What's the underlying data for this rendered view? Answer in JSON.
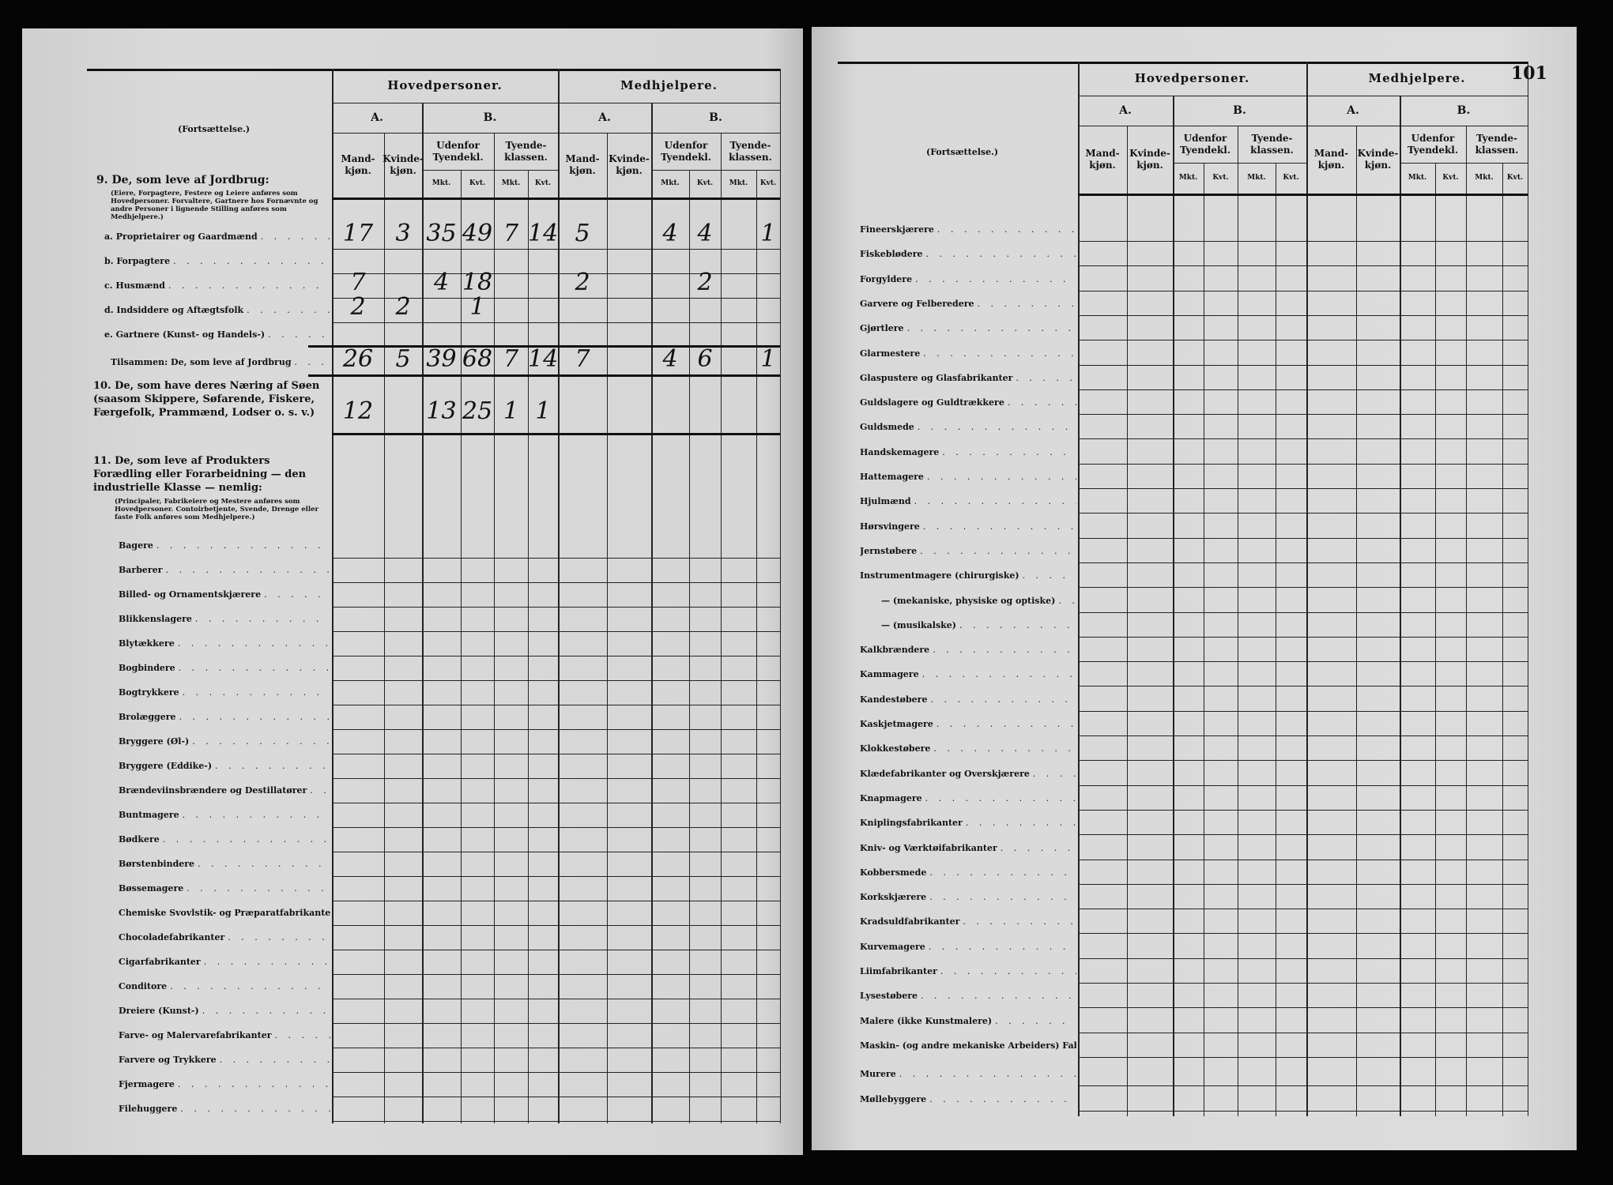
{
  "headers": {
    "continuation": "(Fortsættelse.)",
    "group_main": "Hovedpersoner.",
    "group_helpers": "Medhjelpere.",
    "col_a": "A.",
    "col_b": "B.",
    "male": "Mand-kjøn.",
    "female": "Kvinde-kjøn.",
    "outside": "Udenfor Tyendekl.",
    "servant": "Tyende-klassen.",
    "mkt": "Mkt.",
    "kvt": "Kvt."
  },
  "left_page": {
    "section9": {
      "title": "9. De, som leve af Jordbrug:",
      "note": "(Eiere, Forpagtere, Festere og Leiere anføres som Hovedpersoner. Forvaltere, Gartnere hos Fornævnte og andre Personer i lignende Stilling anføres som Medhjelpere.)",
      "items": [
        {
          "label": "a. Proprietairer og Gaardmænd",
          "values": [
            "17",
            "3",
            "35",
            "49",
            "7",
            "14",
            "5",
            "",
            "4",
            "4",
            "",
            "1"
          ]
        },
        {
          "label": "b. Forpagtere",
          "values": [
            "",
            "",
            "",
            "",
            "",
            "",
            "",
            "",
            "",
            "",
            "",
            ""
          ]
        },
        {
          "label": "c. Husmænd",
          "values": [
            "7",
            "",
            "4",
            "18",
            "",
            "",
            "2",
            "",
            "",
            "2",
            "",
            ""
          ]
        },
        {
          "label": "d. Indsiddere og Aftægtsfolk",
          "values": [
            "2",
            "2",
            "",
            "1",
            "",
            "",
            "",
            "",
            "",
            "",
            "",
            ""
          ]
        },
        {
          "label": "e. Gartnere (Kunst- og Handels-)",
          "values": [
            "",
            "",
            "",
            "",
            "",
            "",
            "",
            "",
            "",
            "",
            "",
            ""
          ]
        }
      ],
      "total": {
        "label": "Tilsammen: De, som leve af Jordbrug",
        "values": [
          "26",
          "5",
          "39",
          "68",
          "7",
          "14",
          "7",
          "",
          "4",
          "6",
          "",
          "1"
        ]
      }
    },
    "section10": {
      "title": "10. De, som have deres Næring af Søen (saasom Skippere, Søfarende, Fiskere, Færgefolk, Prammænd, Lodser o. s. v.)",
      "values": [
        "12",
        "",
        "13",
        "25",
        "1",
        "1",
        "",
        "",
        "",
        "",
        "",
        ""
      ]
    },
    "section11": {
      "title": "11. De, som leve af Produkters Forædling eller Forarbeidning — den industrielle Klasse — nemlig:",
      "note": "(Principaler, Fabrikeiere og Mestere anføres som Hovedpersoner. Contoirbetjente, Svende, Drenge eller faste Folk anføres som Medhjelpere.)",
      "items": [
        "Bagere",
        "Barberer",
        "Billed- og Ornamentskjærere",
        "Blikkenslagere",
        "Blytækkere",
        "Bogbindere",
        "Bogtrykkere",
        "Brolæggere",
        "Bryggere (Øl-)",
        "Bryggere (Eddike-)",
        "Brændeviinsbrændere og Destillatører",
        "Buntmagere",
        "Bødkere",
        "Børstenbindere",
        "Bøssemagere",
        "Chemiske Svovlstik- og Præparatfabrikanter",
        "Chocoladefabrikanter",
        "Cigarfabrikanter",
        "Conditore",
        "Dreiere (Kunst-)",
        "Farve- og Malervarefabrikanter",
        "Farvere og Trykkere",
        "Fjermagere",
        "Filehuggere"
      ]
    }
  },
  "right_page": {
    "page_number": "101",
    "items": [
      "Fineerskjærere",
      "Fiskeblødere",
      "Forgyldere",
      "Garvere og Felberedere",
      "Gjørtlere",
      "Glarmestere",
      "Glaspustere og Glasfabrikanter",
      "Guldslagere og Guldtrækkere",
      "Guldsmede",
      "Handskemagere",
      "Hattemagere",
      "Hjulmænd",
      "Hørsvingere",
      "Jernstøbere",
      "Instrumentmagere (chirurgiske)",
      "— (mekaniske, physiske og optiske)",
      "— (musikalske)",
      "Kalkbrændere",
      "Kammagere",
      "Kandestøbere",
      "Kaskjetmagere",
      "Klokkestøbere",
      "Klædefabrikanter og Overskjærere",
      "Knapmagere",
      "Kniplingsfabrikanter",
      "Kniv- og Værktøifabrikanter",
      "Kobbersmede",
      "Korkskjærere",
      "Kradsuldfabrikanter",
      "Kurvemagere",
      "Liimfabrikanter",
      "Lysestøbere",
      "Malere (ikke Kunstmalere)",
      "Maskin- (og andre mekaniske Arbeiders) Fabrikanter",
      "Murere",
      "Møllebyggere"
    ]
  }
}
